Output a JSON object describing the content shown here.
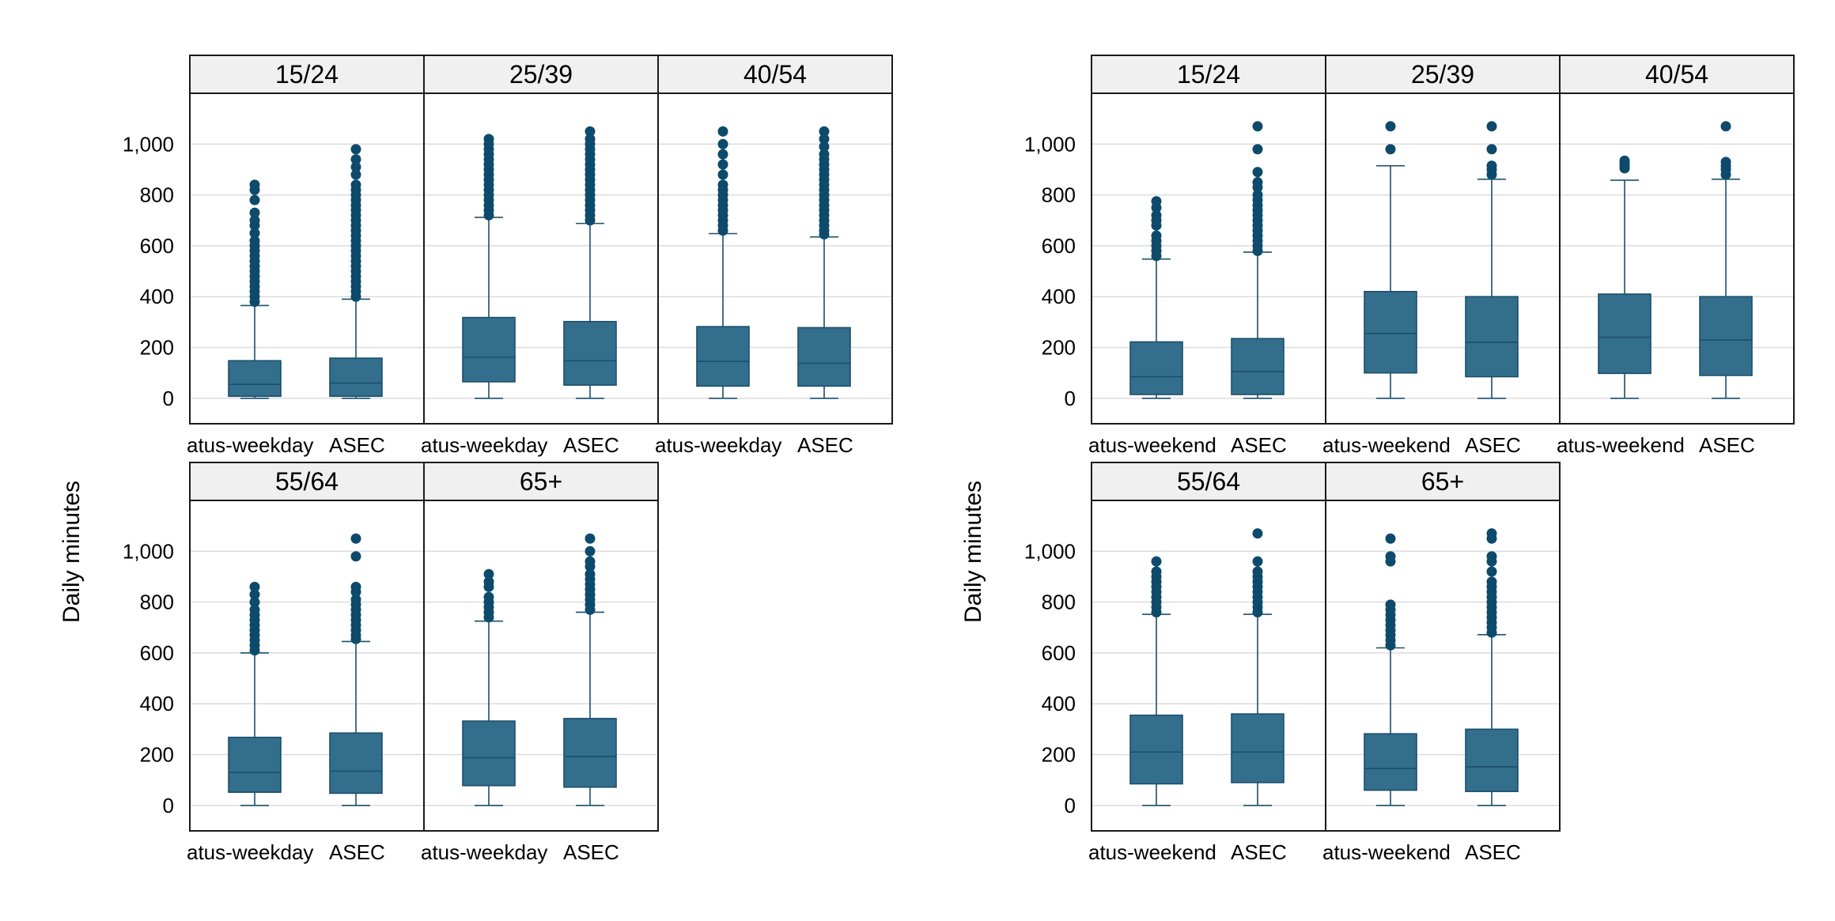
{
  "chart_data": [
    {
      "type": "boxplot",
      "ylabel": "Daily minutes",
      "ylim": [
        -100,
        1200
      ],
      "yticks": [
        0,
        200,
        400,
        600,
        800,
        1000
      ],
      "ytick_labels": [
        "0",
        "200",
        "400",
        "600",
        "800",
        "1,000"
      ],
      "grid": true,
      "categories": [
        "atus-weekday",
        "ASEC"
      ],
      "panels": [
        {
          "title": "15/24",
          "boxes": [
            {
              "category": "atus-weekday",
              "min": 0,
              "q1": 8,
              "median": 55,
              "q3": 148,
              "max": 365,
              "outliers": [
                380,
                400,
                420,
                440,
                460,
                480,
                500,
                520,
                540,
                560,
                580,
                600,
                620,
                650,
                680,
                700,
                730,
                780,
                820,
                840
              ]
            },
            {
              "category": "ASEC",
              "min": 0,
              "q1": 8,
              "median": 60,
              "q3": 158,
              "max": 390,
              "outliers": [
                400,
                420,
                440,
                460,
                480,
                500,
                520,
                540,
                560,
                580,
                600,
                620,
                640,
                660,
                680,
                700,
                720,
                740,
                760,
                780,
                800,
                820,
                840,
                880,
                910,
                940,
                980
              ]
            }
          ]
        },
        {
          "title": "25/39",
          "boxes": [
            {
              "category": "atus-weekday",
              "min": 0,
              "q1": 65,
              "median": 162,
              "q3": 318,
              "max": 712,
              "outliers": [
                720,
                740,
                760,
                780,
                800,
                820,
                840,
                860,
                880,
                900,
                920,
                940,
                960,
                980,
                1000,
                1020
              ]
            },
            {
              "category": "ASEC",
              "min": 0,
              "q1": 52,
              "median": 148,
              "q3": 302,
              "max": 688,
              "outliers": [
                700,
                720,
                740,
                760,
                780,
                800,
                820,
                840,
                860,
                880,
                900,
                920,
                940,
                960,
                980,
                1000,
                1020,
                1050
              ]
            }
          ]
        },
        {
          "title": "40/54",
          "boxes": [
            {
              "category": "atus-weekday",
              "min": 0,
              "q1": 48,
              "median": 145,
              "q3": 282,
              "max": 648,
              "outliers": [
                660,
                680,
                700,
                720,
                740,
                760,
                780,
                800,
                820,
                840,
                880,
                920,
                960,
                1000,
                1050
              ]
            },
            {
              "category": "ASEC",
              "min": 0,
              "q1": 48,
              "median": 138,
              "q3": 278,
              "max": 635,
              "outliers": [
                645,
                660,
                680,
                700,
                720,
                740,
                760,
                780,
                800,
                820,
                840,
                860,
                880,
                900,
                920,
                940,
                960,
                990,
                1020,
                1050
              ]
            }
          ]
        },
        {
          "title": "55/64",
          "boxes": [
            {
              "category": "atus-weekday",
              "min": 0,
              "q1": 52,
              "median": 130,
              "q3": 268,
              "max": 600,
              "outliers": [
                610,
                630,
                650,
                670,
                690,
                710,
                730,
                750,
                770,
                800,
                830,
                860
              ]
            },
            {
              "category": "ASEC",
              "min": 0,
              "q1": 48,
              "median": 135,
              "q3": 285,
              "max": 645,
              "outliers": [
                655,
                670,
                690,
                710,
                730,
                750,
                770,
                790,
                810,
                840,
                860,
                980,
                1050
              ]
            }
          ]
        },
        {
          "title": "65+",
          "boxes": [
            {
              "category": "atus-weekday",
              "min": 0,
              "q1": 78,
              "median": 188,
              "q3": 332,
              "max": 725,
              "outliers": [
                740,
                760,
                780,
                800,
                820,
                860,
                880,
                910
              ]
            },
            {
              "category": "ASEC",
              "min": 0,
              "q1": 72,
              "median": 192,
              "q3": 342,
              "max": 760,
              "outliers": [
                770,
                790,
                810,
                830,
                850,
                870,
                890,
                910,
                940,
                960,
                1000,
                1050
              ]
            }
          ]
        }
      ]
    },
    {
      "type": "boxplot",
      "ylabel": "Daily minutes",
      "ylim": [
        -100,
        1200
      ],
      "yticks": [
        0,
        200,
        400,
        600,
        800,
        1000
      ],
      "ytick_labels": [
        "0",
        "200",
        "400",
        "600",
        "800",
        "1,000"
      ],
      "grid": true,
      "categories": [
        "atus-weekend",
        "ASEC"
      ],
      "panels": [
        {
          "title": "15/24",
          "boxes": [
            {
              "category": "atus-weekend",
              "min": 0,
              "q1": 15,
              "median": 85,
              "q3": 222,
              "max": 548,
              "outliers": [
                560,
                580,
                600,
                620,
                640,
                680,
                700,
                720,
                750,
                775
              ]
            },
            {
              "category": "ASEC",
              "min": 0,
              "q1": 15,
              "median": 105,
              "q3": 235,
              "max": 575,
              "outliers": [
                580,
                600,
                620,
                640,
                660,
                680,
                700,
                720,
                740,
                760,
                780,
                800,
                830,
                850,
                890,
                980,
                1070
              ]
            }
          ]
        },
        {
          "title": "25/39",
          "boxes": [
            {
              "category": "atus-weekend",
              "min": 0,
              "q1": 100,
              "median": 255,
              "q3": 420,
              "max": 915,
              "outliers": [
                980,
                1070
              ]
            },
            {
              "category": "ASEC",
              "min": 0,
              "q1": 85,
              "median": 220,
              "q3": 400,
              "max": 862,
              "outliers": [
                880,
                900,
                915,
                980,
                1070
              ]
            }
          ]
        },
        {
          "title": "40/54",
          "boxes": [
            {
              "category": "atus-weekend",
              "min": 0,
              "q1": 98,
              "median": 240,
              "q3": 410,
              "max": 858,
              "outliers": [
                905,
                915,
                925,
                935
              ]
            },
            {
              "category": "ASEC",
              "min": 0,
              "q1": 90,
              "median": 230,
              "q3": 400,
              "max": 862,
              "outliers": [
                880,
                900,
                915,
                930,
                1070
              ]
            }
          ]
        },
        {
          "title": "55/64",
          "boxes": [
            {
              "category": "atus-weekend",
              "min": 0,
              "q1": 85,
              "median": 210,
              "q3": 355,
              "max": 752,
              "outliers": [
                760,
                780,
                800,
                820,
                840,
                860,
                880,
                900,
                920,
                960
              ]
            },
            {
              "category": "ASEC",
              "min": 0,
              "q1": 90,
              "median": 210,
              "q3": 360,
              "max": 752,
              "outliers": [
                760,
                780,
                800,
                820,
                840,
                860,
                880,
                900,
                920,
                960,
                1070
              ]
            }
          ]
        },
        {
          "title": "65+",
          "boxes": [
            {
              "category": "atus-weekend",
              "min": 0,
              "q1": 60,
              "median": 145,
              "q3": 282,
              "max": 620,
              "outliers": [
                630,
                650,
                670,
                690,
                710,
                730,
                750,
                770,
                790,
                960,
                980,
                1050
              ]
            },
            {
              "category": "ASEC",
              "min": 0,
              "q1": 55,
              "median": 152,
              "q3": 300,
              "max": 672,
              "outliers": [
                680,
                700,
                720,
                740,
                760,
                780,
                800,
                820,
                840,
                860,
                880,
                920,
                960,
                980,
                1050,
                1070
              ]
            }
          ]
        }
      ]
    }
  ],
  "colors": {
    "box_fill": "#336e8c",
    "box_stroke": "#1b4f6c",
    "outlier": "#0d4a6b",
    "grid": "#dcdcdc",
    "frame": "#1a1a1a",
    "header_fill": "#f0f0f0",
    "text": "#000000"
  }
}
